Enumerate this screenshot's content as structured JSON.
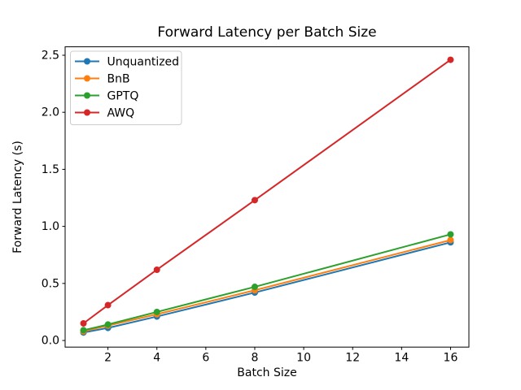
{
  "chart_data": {
    "type": "line",
    "title": "Forward Latency per Batch Size",
    "xlabel": "Batch Size",
    "ylabel": "Forward Latency (s)",
    "x": [
      1,
      2,
      4,
      8,
      16
    ],
    "series": [
      {
        "name": "Unquantized",
        "color": "#1f77b4",
        "values": [
          0.07,
          0.11,
          0.21,
          0.42,
          0.86
        ]
      },
      {
        "name": "BnB",
        "color": "#ff7f0e",
        "values": [
          0.08,
          0.13,
          0.23,
          0.44,
          0.88
        ]
      },
      {
        "name": "GPTQ",
        "color": "#2ca02c",
        "values": [
          0.09,
          0.14,
          0.25,
          0.47,
          0.93
        ]
      },
      {
        "name": "AWQ",
        "color": "#d62728",
        "values": [
          0.15,
          0.31,
          0.62,
          1.23,
          2.46
        ]
      }
    ],
    "xticks": [
      2,
      4,
      6,
      8,
      10,
      12,
      14,
      16
    ],
    "yticks": [
      "0.0",
      "0.5",
      "1.0",
      "1.5",
      "2.0",
      "2.5"
    ],
    "xlim": [
      0.25,
      16.75
    ],
    "ylim": [
      -0.058,
      2.574
    ],
    "grid": false,
    "legend_position": "upper-left",
    "marker": "circle",
    "axes_color": "#000000",
    "legend_border_color": "#cccccc",
    "background_color": "#ffffff"
  }
}
